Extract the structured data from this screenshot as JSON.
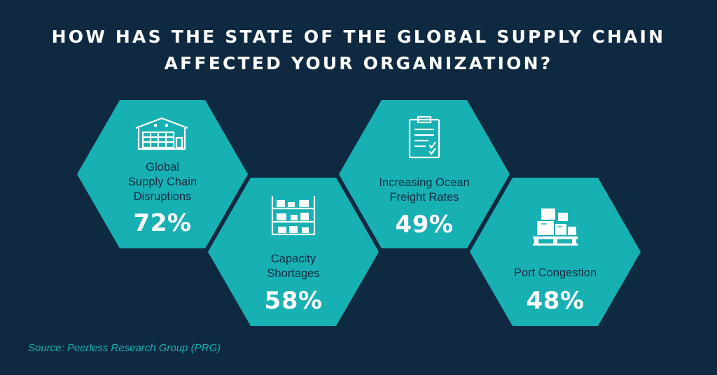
{
  "title": {
    "line1": "HOW HAS THE STATE OF THE GLOBAL SUPPLY CHAIN",
    "line2": "AFFECTED YOUR ORGANIZATION?"
  },
  "colors": {
    "background": "#0f2a40",
    "hexagon": "#17b0b3",
    "value_text": "#ffffff",
    "label_text": "#0f2a40",
    "source_text": "#17b0b3"
  },
  "items": [
    {
      "label_lines": [
        "Global",
        "Supply Chain",
        "Disruptions"
      ],
      "value": "72%",
      "icon": "warehouse-icon"
    },
    {
      "label_lines": [
        "Capacity",
        "Shortages"
      ],
      "value": "58%",
      "icon": "shelving-icon"
    },
    {
      "label_lines": [
        "Increasing Ocean",
        "Freight Rates"
      ],
      "value": "49%",
      "icon": "clipboard-icon"
    },
    {
      "label_lines": [
        "Port Congestion"
      ],
      "value": "48%",
      "icon": "pallet-boxes-icon"
    }
  ],
  "chart_data": {
    "type": "bar",
    "categories": [
      "Global Supply Chain Disruptions",
      "Capacity Shortages",
      "Increasing Ocean Freight Rates",
      "Port Congestion"
    ],
    "values": [
      72,
      58,
      49,
      48
    ],
    "title": "HOW HAS THE STATE OF THE GLOBAL SUPPLY CHAIN AFFECTED YOUR ORGANIZATION?"
  },
  "source": "Source: Peerless Research Group (PRG)"
}
